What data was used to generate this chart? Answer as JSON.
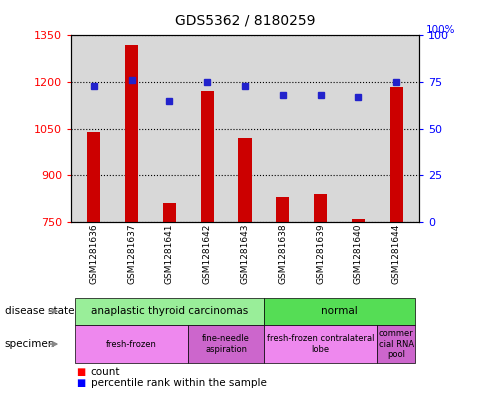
{
  "title": "GDS5362 / 8180259",
  "samples": [
    "GSM1281636",
    "GSM1281637",
    "GSM1281641",
    "GSM1281642",
    "GSM1281643",
    "GSM1281638",
    "GSM1281639",
    "GSM1281640",
    "GSM1281644"
  ],
  "counts": [
    1040,
    1320,
    810,
    1170,
    1020,
    830,
    840,
    760,
    1185
  ],
  "percentiles": [
    73,
    76,
    65,
    75,
    73,
    68,
    68,
    67,
    75
  ],
  "ylim_left": [
    750,
    1350
  ],
  "ylim_right": [
    0,
    100
  ],
  "yticks_left": [
    750,
    900,
    1050,
    1200,
    1350
  ],
  "yticks_right": [
    0,
    25,
    50,
    75,
    100
  ],
  "bar_color": "#cc0000",
  "dot_color": "#2222cc",
  "background_color": "#ffffff",
  "plot_bg_color": "#d8d8d8",
  "disease_state_rows": [
    {
      "label": "anaplastic thyroid carcinomas",
      "start": 0,
      "end": 5,
      "color": "#99ee99"
    },
    {
      "label": "normal",
      "start": 5,
      "end": 9,
      "color": "#55dd55"
    }
  ],
  "specimen_rows": [
    {
      "label": "fresh-frozen",
      "start": 0,
      "end": 3,
      "color": "#ee88ee"
    },
    {
      "label": "fine-needle\naspiration",
      "start": 3,
      "end": 5,
      "color": "#cc66cc"
    },
    {
      "label": "fresh-frozen contralateral\nlobe",
      "start": 5,
      "end": 8,
      "color": "#ee88ee"
    },
    {
      "label": "commer\ncial RNA\npool",
      "start": 8,
      "end": 9,
      "color": "#cc66cc"
    }
  ]
}
